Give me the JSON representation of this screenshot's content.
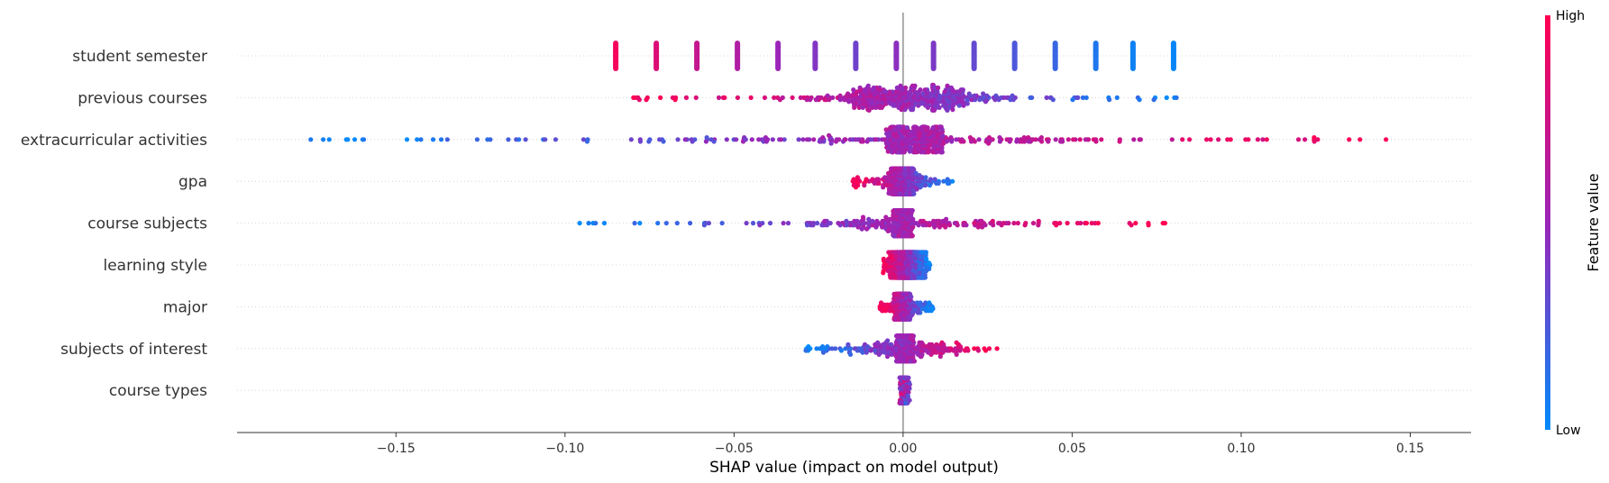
{
  "chart_data": {
    "type": "scatter",
    "subtype": "shap-beeswarm",
    "xlabel": "SHAP value (impact on model output)",
    "ylabel": "",
    "xlim": [
      -0.197,
      0.168
    ],
    "x_ticks": [
      -0.15,
      -0.1,
      -0.05,
      0.0,
      0.05,
      0.1,
      0.15
    ],
    "x_tick_labels": [
      "−0.15",
      "−0.10",
      "−0.05",
      "0.00",
      "0.05",
      "0.10",
      "0.15"
    ],
    "grid": false,
    "row_gridlines": "dotted",
    "colorbar": {
      "title": "Feature value",
      "high_label": "High",
      "low_label": "Low",
      "high_color": "#ff0052",
      "mid_color": "#9b25b8",
      "low_color": "#008bfb"
    },
    "features": [
      {
        "name": "student semester",
        "clusters": [
          [
            -0.085,
            0.95
          ],
          [
            -0.073,
            0.82
          ],
          [
            -0.061,
            0.7
          ],
          [
            -0.049,
            0.6
          ],
          [
            -0.037,
            0.5
          ],
          [
            -0.026,
            0.42
          ],
          [
            -0.014,
            0.36
          ],
          [
            -0.002,
            0.45
          ],
          [
            0.009,
            0.4
          ],
          [
            0.021,
            0.32
          ],
          [
            0.033,
            0.25
          ],
          [
            0.045,
            0.18
          ],
          [
            0.057,
            0.1
          ],
          [
            0.068,
            0.05
          ],
          [
            0.08,
            0.03
          ]
        ]
      },
      {
        "name": "previous courses",
        "min": -0.081,
        "max": 0.087,
        "core": [
          -0.015,
          0.018
        ],
        "order": "high-to-low"
      },
      {
        "name": "extracurricular activities",
        "min": -0.18,
        "max": 0.152,
        "core": [
          -0.005,
          0.012
        ],
        "order": "low-to-high"
      },
      {
        "name": "gpa",
        "min": -0.015,
        "max": 0.015,
        "core": [
          -0.003,
          0.003
        ],
        "order": "high-to-low"
      },
      {
        "name": "course subjects",
        "min": -0.096,
        "max": 0.078,
        "core": [
          -0.003,
          0.003
        ],
        "order": "low-to-high"
      },
      {
        "name": "learning style",
        "min": -0.006,
        "max": 0.008,
        "core": [
          -0.004,
          0.007
        ],
        "order": "high-to-low"
      },
      {
        "name": "major",
        "min": -0.007,
        "max": 0.009,
        "core": [
          -0.002,
          0.002
        ],
        "order": "high-to-low"
      },
      {
        "name": "subjects of interest",
        "min": -0.03,
        "max": 0.028,
        "core": [
          -0.002,
          0.003
        ],
        "order": "low-to-high"
      },
      {
        "name": "course types",
        "min": -0.001,
        "max": 0.002,
        "core": [
          -0.001,
          0.001
        ],
        "order": "mixed"
      }
    ]
  }
}
